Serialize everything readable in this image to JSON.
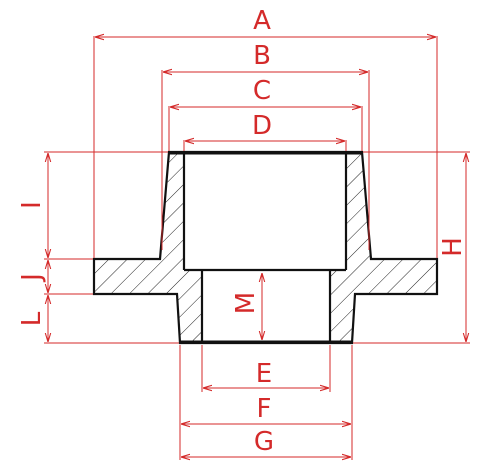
{
  "labels": {
    "A": "A",
    "B": "B",
    "C": "C",
    "D": "D",
    "E": "E",
    "F": "F",
    "G": "G",
    "H": "H",
    "I": "I",
    "J": "J",
    "L": "L",
    "M": "M"
  },
  "colors": {
    "dimension": "#d42a2a",
    "outline": "#111111",
    "background": "#ffffff"
  }
}
